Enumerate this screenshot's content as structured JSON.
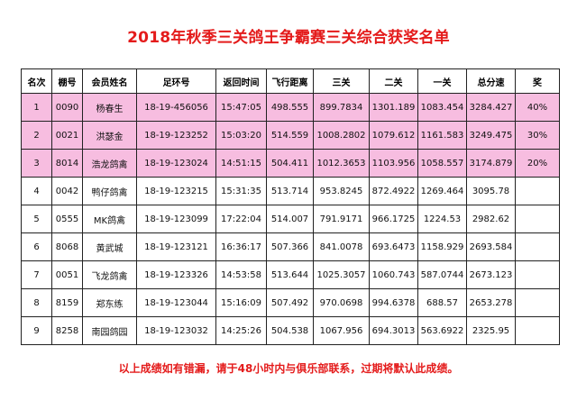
{
  "title": "2018年秋季三关鸽王争霸赛三关综合获奖名单",
  "headers": [
    "名次",
    "棚号",
    "会员姓名",
    "足环号",
    "返回时间",
    "飞行距离",
    "三关",
    "二关",
    "一关",
    "总分速",
    "奖"
  ],
  "rows": [
    {
      "rank": "1",
      "loft": "0090",
      "name": "杨春生",
      "ring": "18-19-456056",
      "time": "15:47:05",
      "distance": "498.555",
      "stage3": "899.7834",
      "stage2": "1301.189",
      "stage1": "1083.454",
      "total": "3284.427",
      "prize": "40%"
    },
    {
      "rank": "2",
      "loft": "0021",
      "name": "洪瑟金",
      "ring": "18-19-123252",
      "time": "15:03:20",
      "distance": "514.559",
      "stage3": "1008.2802",
      "stage2": "1079.612",
      "stage1": "1161.583",
      "total": "3249.475",
      "prize": "30%"
    },
    {
      "rank": "3",
      "loft": "8014",
      "name": "浩龙鸽禽",
      "ring": "18-19-123024",
      "time": "14:51:15",
      "distance": "504.411",
      "stage3": "1012.3653",
      "stage2": "1103.956",
      "stage1": "1058.557",
      "total": "3174.879",
      "prize": "20%"
    },
    {
      "rank": "4",
      "loft": "0042",
      "name": "鸭仔鸽禽",
      "ring": "18-19-123215",
      "time": "15:31:35",
      "distance": "513.714",
      "stage3": "953.8245",
      "stage2": "872.4922",
      "stage1": "1269.464",
      "total": "3095.78",
      "prize": ""
    },
    {
      "rank": "5",
      "loft": "0555",
      "name": "MK鸽禽",
      "ring": "18-19-123099",
      "time": "17:22:04",
      "distance": "514.007",
      "stage3": "791.9171",
      "stage2": "966.1725",
      "stage1": "1224.53",
      "total": "2982.62",
      "prize": ""
    },
    {
      "rank": "6",
      "loft": "8068",
      "name": "黄武城",
      "ring": "18-19-123121",
      "time": "16:36:17",
      "distance": "507.366",
      "stage3": "841.0078",
      "stage2": "693.6473",
      "stage1": "1158.929",
      "total": "2693.584",
      "prize": ""
    },
    {
      "rank": "7",
      "loft": "0051",
      "name": "飞龙鸽禽",
      "ring": "18-19-123326",
      "time": "14:53:58",
      "distance": "513.644",
      "stage3": "1025.3057",
      "stage2": "1060.743",
      "stage1": "587.0744",
      "total": "2673.123",
      "prize": ""
    },
    {
      "rank": "8",
      "loft": "8159",
      "name": "郑东练",
      "ring": "18-19-123044",
      "time": "15:16:09",
      "distance": "507.492",
      "stage3": "970.0698",
      "stage2": "994.6378",
      "stage1": "688.57",
      "total": "2653.278",
      "prize": ""
    },
    {
      "rank": "9",
      "loft": "8258",
      "name": "南园鸽园",
      "ring": "18-19-123032",
      "time": "14:25:26",
      "distance": "504.538",
      "stage3": "1067.956",
      "stage2": "694.3013",
      "stage1": "563.6922",
      "total": "2325.95",
      "prize": ""
    }
  ],
  "footer": "以上成绩如有错漏，请于48小时内与俱乐部联系，过期将默认此成绩。",
  "colors": {
    "title": "#e41b1b",
    "highlight_row": "#f7bde0",
    "footer": "#e41b1b"
  }
}
